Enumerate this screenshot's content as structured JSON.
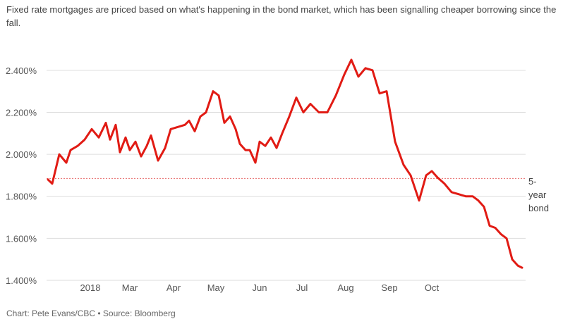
{
  "subtitle": "Fixed rate mortgages are priced based on what's happening in the bond market, which has been signalling cheaper borrowing since the fall.",
  "source": "Chart: Pete Evans/CBC • Source: Bloomberg",
  "colors": {
    "line": "#e11b14",
    "grid": "#dddddd",
    "reference": "#e86b6b"
  },
  "chart_data": {
    "type": "line",
    "title": "",
    "xlabel": "",
    "ylabel": "",
    "ylim": [
      1.4,
      2.5
    ],
    "yticks": [
      1.4,
      1.6,
      1.8,
      2.0,
      2.2,
      2.4
    ],
    "ytick_labels": [
      "1.400%",
      "1.600%",
      "1.800%",
      "2.000%",
      "2.200%",
      "2.400%"
    ],
    "xlim": [
      "2018-01-01",
      "2018-12-05"
    ],
    "xticks": [
      "2018-02-01",
      "2018-03-01",
      "2018-04-01",
      "2018-05-01",
      "2018-06-01",
      "2018-07-01",
      "2018-08-01",
      "2018-09-01",
      "2018-10-01"
    ],
    "xtick_labels": [
      "2018",
      "Mar",
      "Apr",
      "May",
      "Jun",
      "Jul",
      "Aug",
      "Sep",
      "Oct"
    ],
    "grid": true,
    "reference_line": {
      "value": 1.885,
      "label_lines": [
        "5-",
        "year",
        "bond"
      ]
    },
    "series": [
      {
        "x": [
          "2018-01-02",
          "2018-01-05",
          "2018-01-10",
          "2018-01-15",
          "2018-01-18",
          "2018-01-23",
          "2018-01-28",
          "2018-02-02",
          "2018-02-07",
          "2018-02-12",
          "2018-02-15",
          "2018-02-19",
          "2018-02-22",
          "2018-02-26",
          "2018-03-01",
          "2018-03-05",
          "2018-03-09",
          "2018-03-13",
          "2018-03-16",
          "2018-03-21",
          "2018-03-26",
          "2018-03-30",
          "2018-04-04",
          "2018-04-09",
          "2018-04-12",
          "2018-04-16",
          "2018-04-20",
          "2018-04-24",
          "2018-04-29",
          "2018-05-03",
          "2018-05-07",
          "2018-05-11",
          "2018-05-15",
          "2018-05-18",
          "2018-05-22",
          "2018-05-25",
          "2018-05-29",
          "2018-06-01",
          "2018-06-05",
          "2018-06-09",
          "2018-06-13",
          "2018-06-17",
          "2018-06-22",
          "2018-06-27",
          "2018-07-02",
          "2018-07-07",
          "2018-07-13",
          "2018-07-19",
          "2018-07-25",
          "2018-07-31",
          "2018-08-05",
          "2018-08-10",
          "2018-08-15",
          "2018-08-20",
          "2018-08-25",
          "2018-08-30",
          "2018-09-05",
          "2018-09-11",
          "2018-09-16",
          "2018-09-22",
          "2018-09-27",
          "2018-10-01",
          "2018-10-05",
          "2018-10-10",
          "2018-10-15",
          "2018-10-20",
          "2018-10-25",
          "2018-10-30",
          "2018-11-03",
          "2018-11-07",
          "2018-11-11",
          "2018-11-15",
          "2018-11-19",
          "2018-11-23",
          "2018-11-27",
          "2018-12-01",
          "2018-12-04"
        ],
        "values": [
          1.88,
          1.86,
          2.0,
          1.96,
          2.02,
          2.04,
          2.07,
          2.12,
          2.08,
          2.15,
          2.07,
          2.14,
          2.01,
          2.08,
          2.02,
          2.06,
          1.99,
          2.04,
          2.09,
          1.97,
          2.03,
          2.12,
          2.13,
          2.14,
          2.16,
          2.11,
          2.18,
          2.2,
          2.3,
          2.28,
          2.15,
          2.18,
          2.12,
          2.05,
          2.02,
          2.02,
          1.96,
          2.06,
          2.04,
          2.08,
          2.03,
          2.1,
          2.18,
          2.27,
          2.2,
          2.24,
          2.2,
          2.2,
          2.28,
          2.38,
          2.45,
          2.37,
          2.41,
          2.4,
          2.29,
          2.3,
          2.06,
          1.95,
          1.9,
          1.78,
          1.9,
          1.92,
          1.89,
          1.86,
          1.82,
          1.81,
          1.8,
          1.8,
          1.78,
          1.75,
          1.66,
          1.65,
          1.62,
          1.6,
          1.5,
          1.47,
          1.46
        ]
      }
    ]
  }
}
